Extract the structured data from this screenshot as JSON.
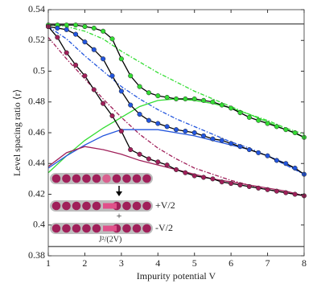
{
  "chart_data": {
    "type": "line",
    "x_label": "Impurity potential V",
    "y_label": "Level spacing ratio ⟨r⟩",
    "xlim": [
      1,
      8
    ],
    "ylim": [
      0.38,
      0.54
    ],
    "xticks": [
      1,
      2,
      3,
      4,
      5,
      6,
      7,
      8
    ],
    "yticks": [
      0.38,
      0.4,
      0.42,
      0.44,
      0.46,
      0.48,
      0.5,
      0.52,
      0.54
    ],
    "hlines": [
      0.5307,
      0.386
    ],
    "hline_color": "#666666",
    "annotations": [
      "+",
      "+V/2",
      "-V/2",
      "J²/(2V)"
    ],
    "series": [
      {
        "color": "#7a7a7a",
        "line_color": "#33dd33",
        "dash": true,
        "marker": false,
        "x": [
          1,
          1.5,
          2,
          2.5,
          3,
          3.5,
          4,
          4.5,
          5,
          5.5,
          6,
          6.5,
          7,
          7.5,
          8
        ],
        "values": [
          0.53,
          0.529,
          0.526,
          0.521,
          0.513,
          0.506,
          0.499,
          0.493,
          0.487,
          0.482,
          0.477,
          0.472,
          0.468,
          0.463,
          0.459
        ]
      },
      {
        "line_color": "#2255dd",
        "dash": true,
        "marker": false,
        "x": [
          1,
          1.5,
          2,
          2.5,
          3,
          3.5,
          4,
          4.5,
          5,
          5.5,
          6,
          6.5,
          7,
          7.5,
          8
        ],
        "values": [
          0.529,
          0.521,
          0.51,
          0.5,
          0.49,
          0.482,
          0.475,
          0.469,
          0.464,
          0.459,
          0.454,
          0.45,
          0.445,
          0.439,
          0.433
        ]
      },
      {
        "line_color": "#a0205a",
        "dash": true,
        "marker": false,
        "x": [
          1,
          1.5,
          2,
          2.5,
          3,
          3.5,
          4,
          4.5,
          5,
          5.5,
          6,
          6.5,
          7,
          7.5,
          8
        ],
        "values": [
          0.522,
          0.508,
          0.495,
          0.482,
          0.47,
          0.459,
          0.45,
          0.443,
          0.437,
          0.433,
          0.429,
          0.426,
          0.423,
          0.421,
          0.419
        ]
      },
      {
        "line_color": "#33dd33",
        "dash": false,
        "marker": false,
        "x": [
          1,
          1.5,
          2,
          2.5,
          3,
          3.5,
          4,
          4.5,
          5,
          5.5,
          6,
          6.5,
          7,
          7.5,
          8
        ],
        "values": [
          0.434,
          0.445,
          0.455,
          0.463,
          0.47,
          0.477,
          0.481,
          0.482,
          0.481,
          0.479,
          0.476,
          0.472,
          0.467,
          0.462,
          0.457
        ]
      },
      {
        "line_color": "#2255dd",
        "dash": false,
        "marker": false,
        "x": [
          1,
          1.5,
          2,
          2.5,
          3,
          3.5,
          4,
          4.5,
          5,
          5.5,
          6,
          6.5,
          7,
          7.5,
          8
        ],
        "values": [
          0.437,
          0.445,
          0.452,
          0.458,
          0.462,
          0.462,
          0.462,
          0.46,
          0.458,
          0.455,
          0.452,
          0.449,
          0.445,
          0.44,
          0.433
        ]
      },
      {
        "line_color": "#a0205a",
        "dash": false,
        "marker": false,
        "x": [
          1,
          1.5,
          2,
          2.5,
          3,
          3.5,
          4,
          4.5,
          5,
          5.5,
          6,
          6.5,
          7,
          7.5,
          8
        ],
        "values": [
          0.438,
          0.447,
          0.451,
          0.449,
          0.446,
          0.442,
          0.439,
          0.436,
          0.433,
          0.43,
          0.428,
          0.426,
          0.424,
          0.422,
          0.419
        ]
      },
      {
        "line_color": "#000000",
        "color": "#33dd33",
        "dash": false,
        "marker": true,
        "x": [
          1,
          1.25,
          1.5,
          1.75,
          2,
          2.25,
          2.5,
          2.75,
          3,
          3.25,
          3.5,
          3.75,
          4,
          4.25,
          4.5,
          4.75,
          5,
          5.25,
          5.5,
          5.75,
          6,
          6.25,
          6.5,
          6.75,
          7,
          7.25,
          7.5,
          7.75,
          8
        ],
        "values": [
          0.53,
          0.53,
          0.53,
          0.53,
          0.529,
          0.528,
          0.526,
          0.521,
          0.508,
          0.497,
          0.49,
          0.486,
          0.484,
          0.483,
          0.482,
          0.482,
          0.482,
          0.481,
          0.48,
          0.478,
          0.476,
          0.473,
          0.47,
          0.468,
          0.466,
          0.464,
          0.462,
          0.46,
          0.457
        ]
      },
      {
        "line_color": "#000000",
        "color": "#2255dd",
        "dash": false,
        "marker": true,
        "x": [
          1,
          1.25,
          1.5,
          1.75,
          2,
          2.25,
          2.5,
          2.75,
          3,
          3.25,
          3.5,
          3.75,
          4,
          4.25,
          4.5,
          4.75,
          5,
          5.25,
          5.5,
          5.75,
          6,
          6.25,
          6.5,
          6.75,
          7,
          7.25,
          7.5,
          7.75,
          8
        ],
        "values": [
          0.529,
          0.528,
          0.527,
          0.524,
          0.519,
          0.514,
          0.508,
          0.497,
          0.487,
          0.478,
          0.472,
          0.468,
          0.466,
          0.464,
          0.462,
          0.461,
          0.46,
          0.458,
          0.456,
          0.455,
          0.453,
          0.451,
          0.449,
          0.447,
          0.445,
          0.442,
          0.44,
          0.437,
          0.433
        ]
      },
      {
        "line_color": "#000000",
        "color": "#a0205a",
        "dash": false,
        "marker": true,
        "x": [
          1,
          1.25,
          1.5,
          1.75,
          2,
          2.25,
          2.5,
          2.75,
          3,
          3.25,
          3.5,
          3.75,
          4,
          4.25,
          4.5,
          4.75,
          5,
          5.25,
          5.5,
          5.75,
          6,
          6.25,
          6.5,
          6.75,
          7,
          7.25,
          7.5,
          7.75,
          8
        ],
        "values": [
          0.529,
          0.522,
          0.512,
          0.504,
          0.497,
          0.488,
          0.479,
          0.471,
          0.461,
          0.449,
          0.446,
          0.443,
          0.441,
          0.439,
          0.436,
          0.434,
          0.432,
          0.431,
          0.43,
          0.428,
          0.427,
          0.426,
          0.425,
          0.424,
          0.423,
          0.422,
          0.421,
          0.42,
          0.419
        ]
      }
    ]
  }
}
